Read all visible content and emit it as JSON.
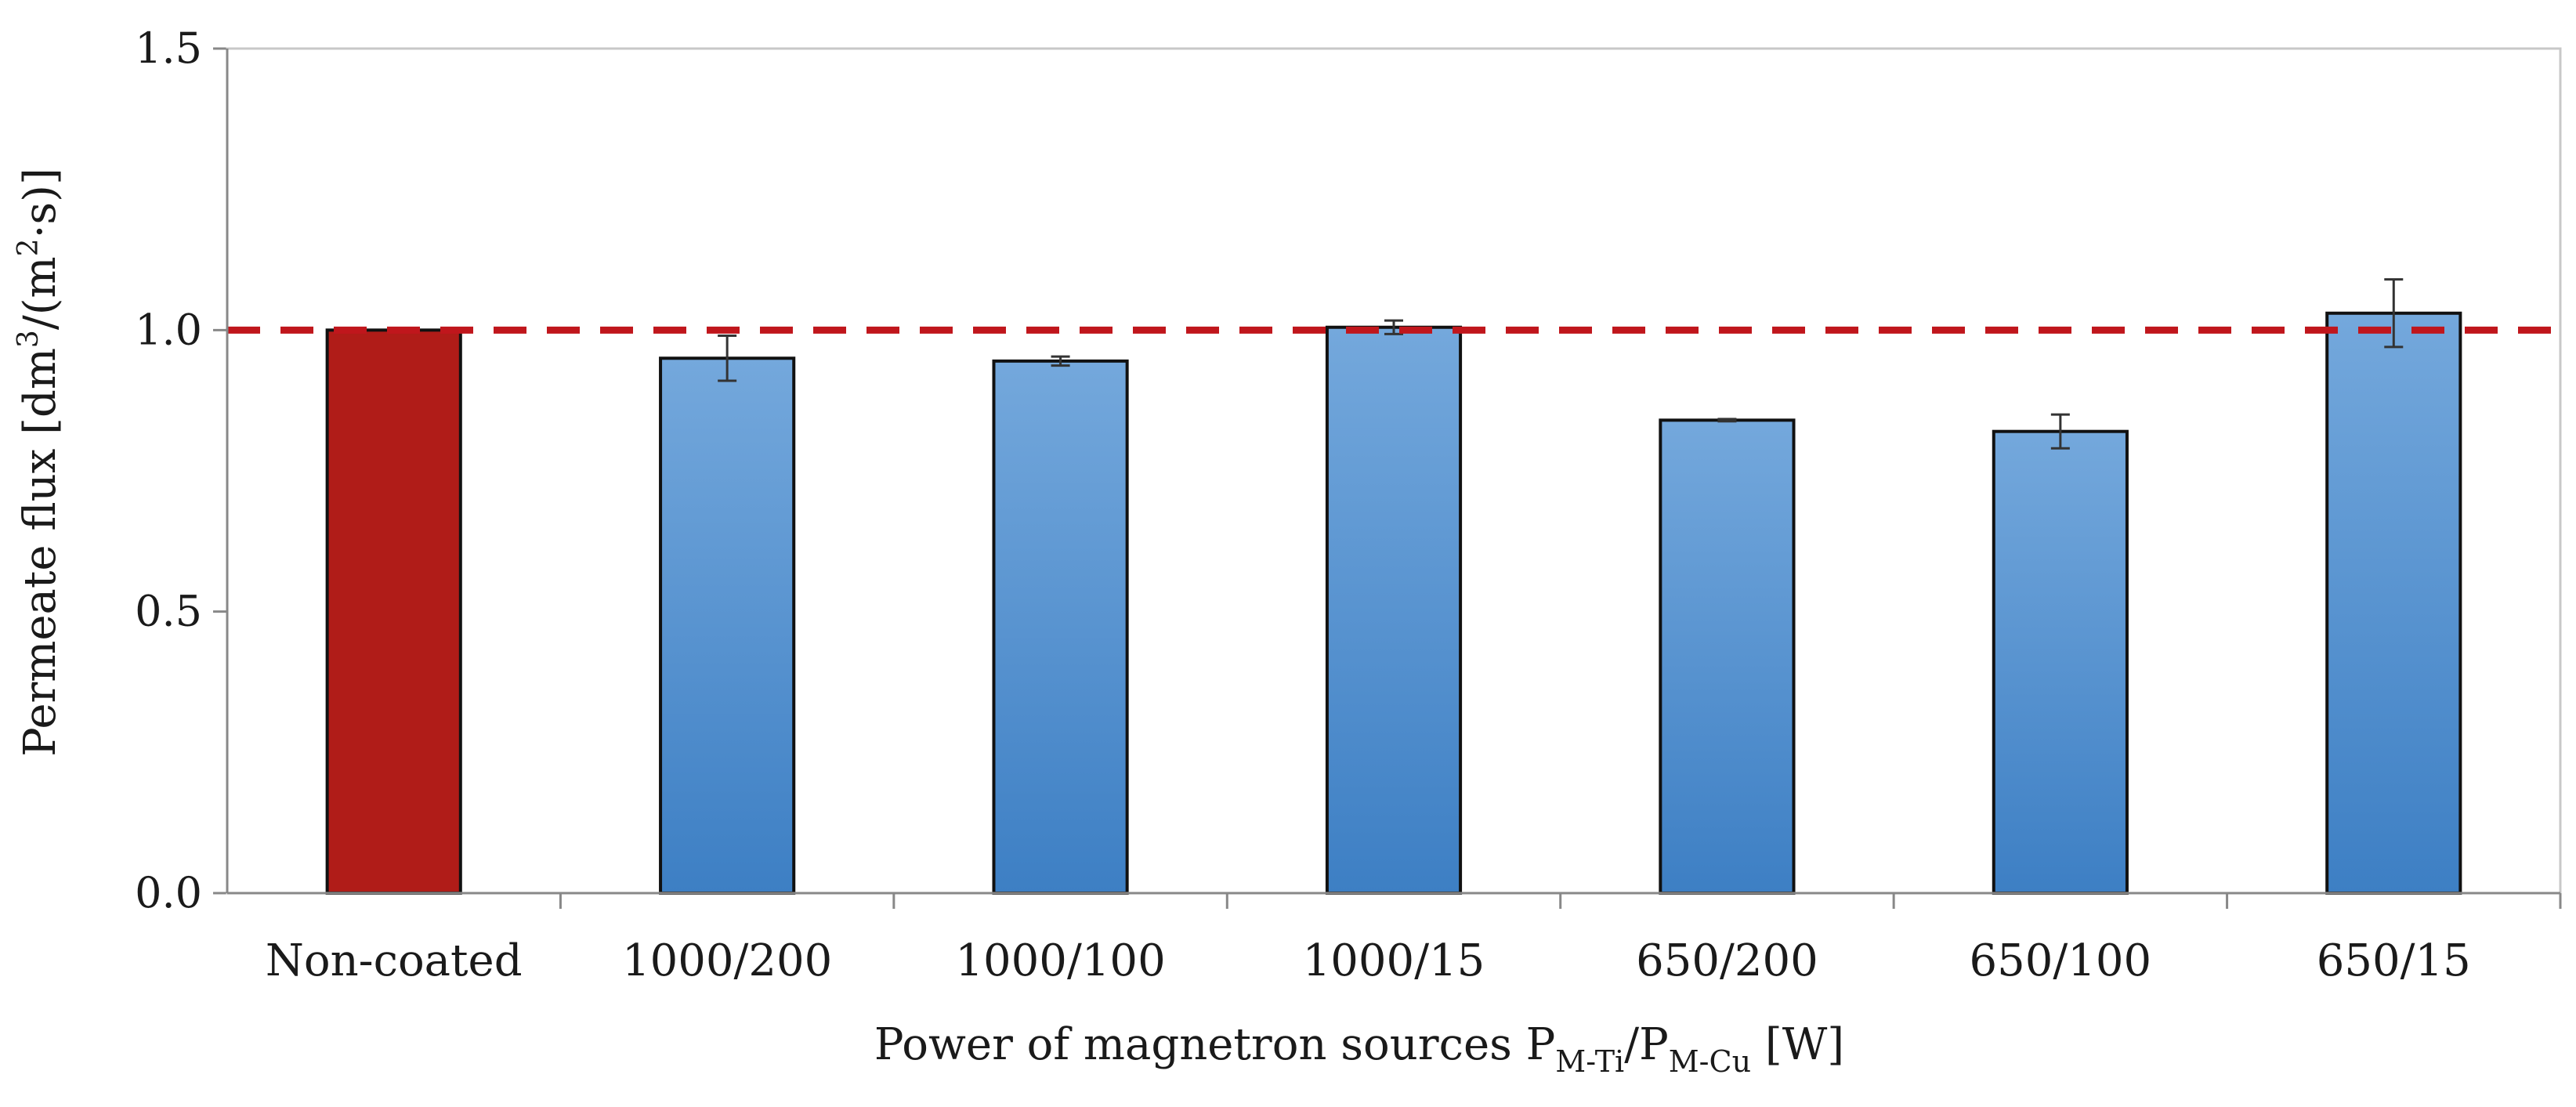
{
  "chart_data": {
    "type": "bar",
    "title": "",
    "xlabel_prefix": "Power of magnetron sources P",
    "xlabel_sub1": "M-Ti",
    "xlabel_mid": "/P",
    "xlabel_sub2": "M-Cu",
    "xlabel_suffix": " [W]",
    "ylabel_prefix": "Permeate  flux [dm",
    "ylabel_sup1": "3",
    "ylabel_mid": "/(m",
    "ylabel_sup2": "2",
    "ylabel_suffix": "·s)]",
    "categories": [
      "Non-coated",
      "1000/200",
      "1000/100",
      "1000/15",
      "650/200",
      "650/100",
      "650/15"
    ],
    "values": [
      1.0,
      0.95,
      0.945,
      1.005,
      0.84,
      0.82,
      1.03
    ],
    "errors": [
      0.0,
      0.04,
      0.008,
      0.012,
      0.002,
      0.03,
      0.06
    ],
    "ylim": [
      0.0,
      1.5
    ],
    "yticks": [
      "0.0",
      "0.5",
      "1.0",
      "1.5"
    ],
    "ytick_values": [
      0.0,
      0.5,
      1.0,
      1.5
    ],
    "reference_line": 1.0,
    "grid": false,
    "colors": {
      "reference_bar": "#b01c18",
      "bar_top": "#74a8dc",
      "bar_bottom": "#3d7fc4",
      "bar_edge": "#111111",
      "reference_line": "#c0161c",
      "axis": "#888888"
    }
  }
}
